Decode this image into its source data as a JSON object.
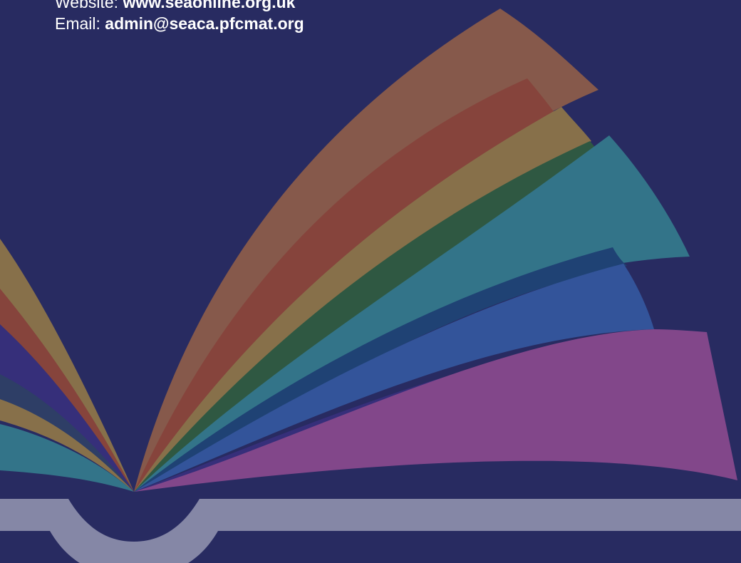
{
  "contact": {
    "website_label": "Website: ",
    "website_value": "www.seaonline.org.uk",
    "email_label": "Email: ",
    "email_value": "admin@seaca.pfcmat.org"
  },
  "colors": {
    "background": "#282b61",
    "book_spine": "#8587a6",
    "page_purple": "#82478a",
    "page_indigo": "#362f7a",
    "page_blue": "#33549a",
    "page_navy": "#1f4274",
    "page_teal": "#337489",
    "page_green": "#2f5842",
    "page_olive": "#87704a",
    "page_red": "#86443c",
    "page_brown": "#86594b"
  }
}
